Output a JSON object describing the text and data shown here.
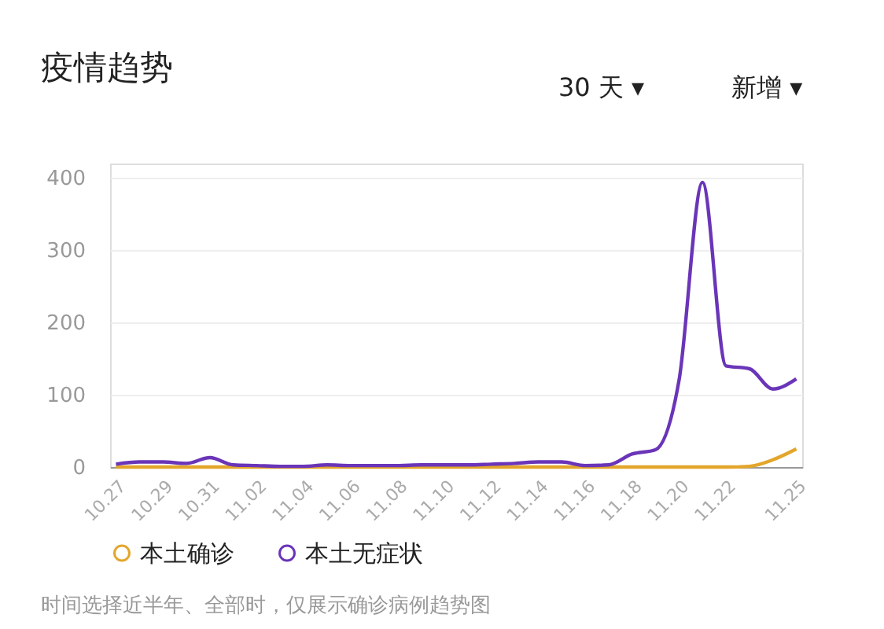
{
  "chart_data": {
    "type": "line",
    "title": "疫情趋势",
    "categories": [
      "10.27",
      null,
      "10.29",
      null,
      "10.31",
      null,
      "11.02",
      null,
      "11.04",
      null,
      "11.06",
      null,
      "11.08",
      null,
      "11.10",
      null,
      "11.12",
      null,
      "11.14",
      null,
      "11.16",
      null,
      "11.18",
      null,
      "11.20",
      null,
      "11.22",
      null,
      null,
      "11.25"
    ],
    "series": [
      {
        "name": "本土确诊",
        "color": "#e3a62b",
        "values": [
          0,
          0,
          0,
          0,
          0,
          0,
          0,
          0,
          0,
          0,
          0,
          0,
          0,
          0,
          0,
          0,
          0,
          0,
          0,
          0,
          0,
          0,
          0,
          0,
          0,
          0,
          0,
          1,
          10,
          25
        ]
      },
      {
        "name": "本土无症状",
        "color": "#6a35b8",
        "values": [
          4,
          7,
          7,
          5,
          13,
          3,
          2,
          1,
          1,
          3,
          2,
          2,
          2,
          3,
          3,
          3,
          4,
          5,
          7,
          7,
          2,
          3,
          18,
          24,
          120,
          394,
          140,
          136,
          108,
          122
        ]
      }
    ],
    "ylim": [
      0,
      420
    ],
    "yticks": [
      0,
      100,
      200,
      300,
      400
    ],
    "grid": "y",
    "legend": "bottom",
    "line_style": "solid",
    "annotations": [
      "30 天 ▾",
      "新增 ▾",
      "时间选择近半年、全部时，仅展示确诊病例趋势图"
    ]
  }
}
